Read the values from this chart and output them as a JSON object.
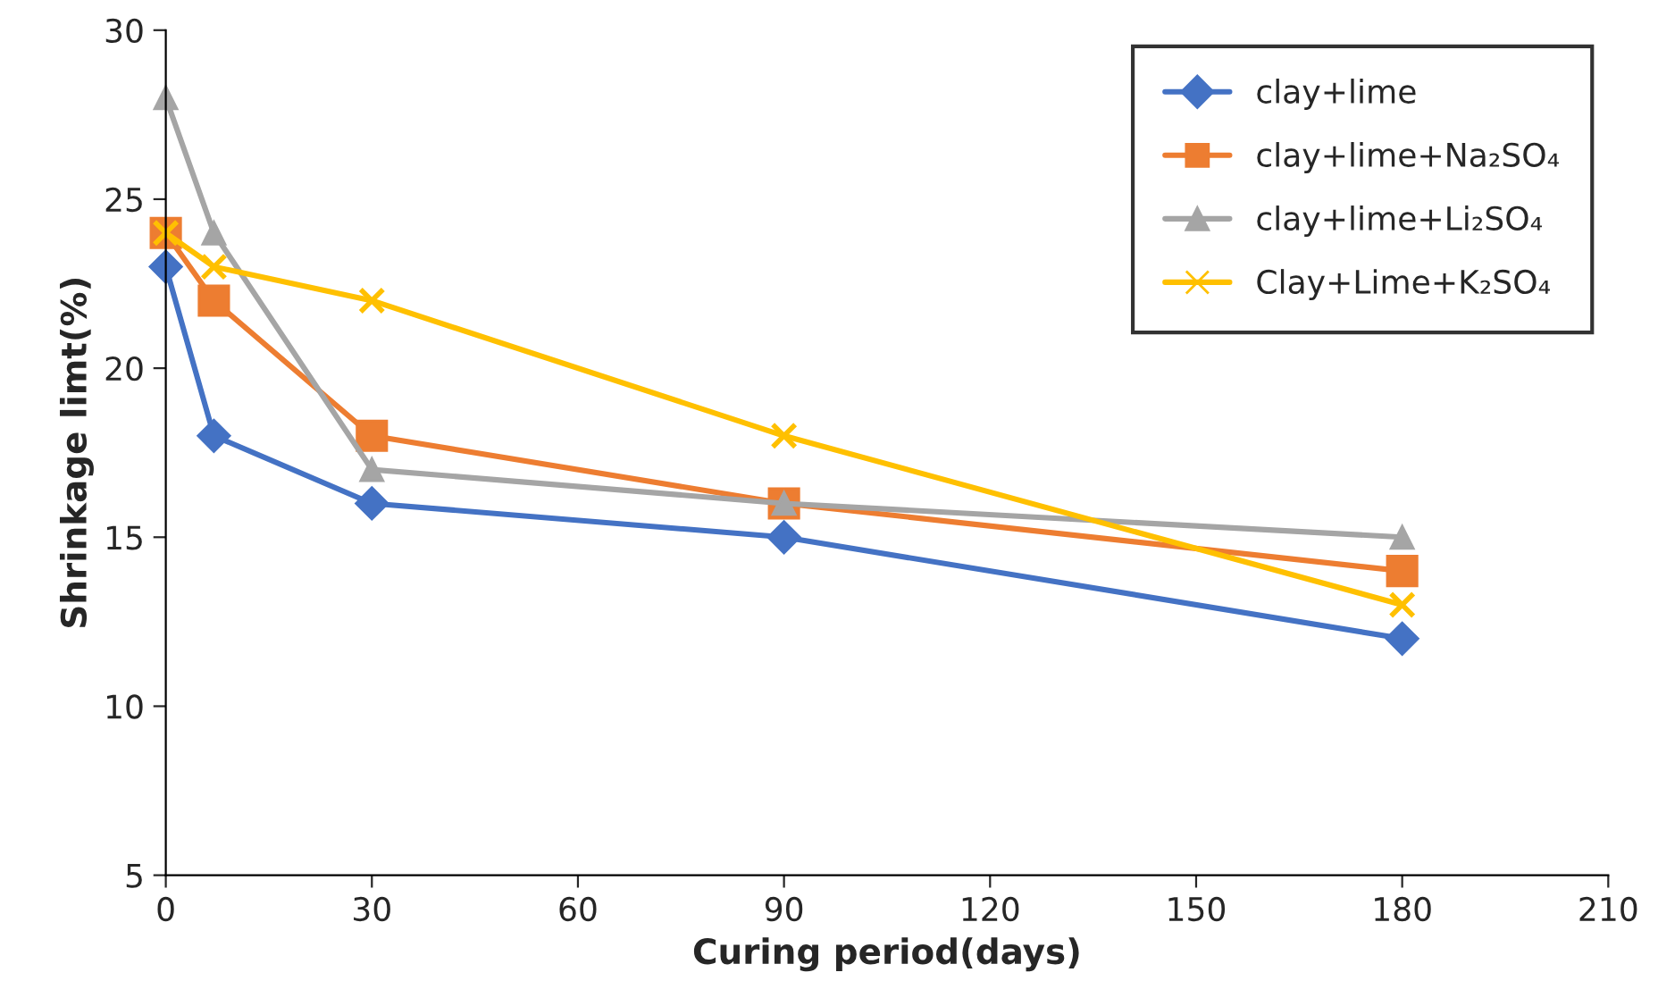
{
  "chart_data": {
    "type": "line",
    "xlabel": "Curing period(days)",
    "ylabel": "Shrinkage limt(%)",
    "x": [
      0,
      7,
      30,
      90,
      180
    ],
    "series": [
      {
        "name": "clay+lime",
        "color": "#4472c4",
        "marker": "diamond",
        "values": [
          23,
          18,
          16,
          15,
          12
        ]
      },
      {
        "name": "clay+lime+Na₂SO₄",
        "color": "#ed7d31",
        "marker": "square",
        "values": [
          24,
          22,
          18,
          16,
          14
        ]
      },
      {
        "name": "clay+lime+Li₂SO₄",
        "color": "#a5a5a5",
        "marker": "triangle",
        "values": [
          28,
          24,
          17,
          16,
          15
        ]
      },
      {
        "name": "Clay+Lime+K₂SO₄",
        "color": "#ffc000",
        "marker": "cross",
        "values": [
          24,
          23,
          22,
          18,
          13
        ]
      }
    ],
    "xlim": [
      0,
      210
    ],
    "xticks": [
      0,
      30,
      60,
      90,
      120,
      150,
      180,
      210
    ],
    "ylim": [
      5,
      30
    ],
    "yticks": [
      5,
      10,
      15,
      20,
      25,
      30
    ],
    "grid": false,
    "legend": "top right",
    "line_style": "solid"
  }
}
